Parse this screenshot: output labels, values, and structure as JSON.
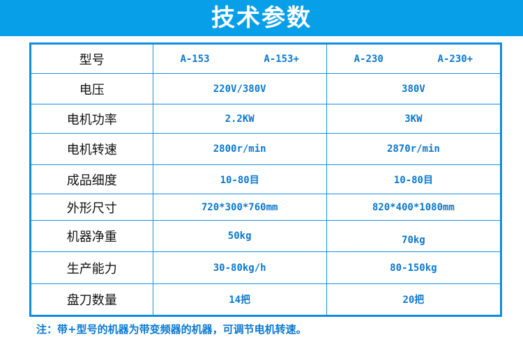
{
  "title": "技术参数",
  "header": {
    "label": "型号",
    "models": [
      "A-153",
      "A-153+",
      "A-230",
      "A-230+"
    ]
  },
  "rows": [
    {
      "label": "电压",
      "a": "220V/380V",
      "b": "380V"
    },
    {
      "label": "电机功率",
      "a": "2.2KW",
      "b": "3KW"
    },
    {
      "label": "电机转速",
      "a": "2800r/min",
      "b": "2870r/min"
    },
    {
      "label": "成品细度",
      "a": "10-80目",
      "b": "10-80目"
    },
    {
      "label": "外形尺寸",
      "a": "720*300*760mm",
      "b": "820*400*1080mm"
    },
    {
      "label": "机器净重",
      "a": "50kg",
      "b": "70kg"
    },
    {
      "label": "生产能力",
      "a": "30-80kg/h",
      "b": "80-150kg"
    },
    {
      "label": "盘刀数量",
      "a": "14把",
      "b": "20把"
    }
  ],
  "note": "注：带+型号的机器为带变频器的机器，可调节电机转速。"
}
